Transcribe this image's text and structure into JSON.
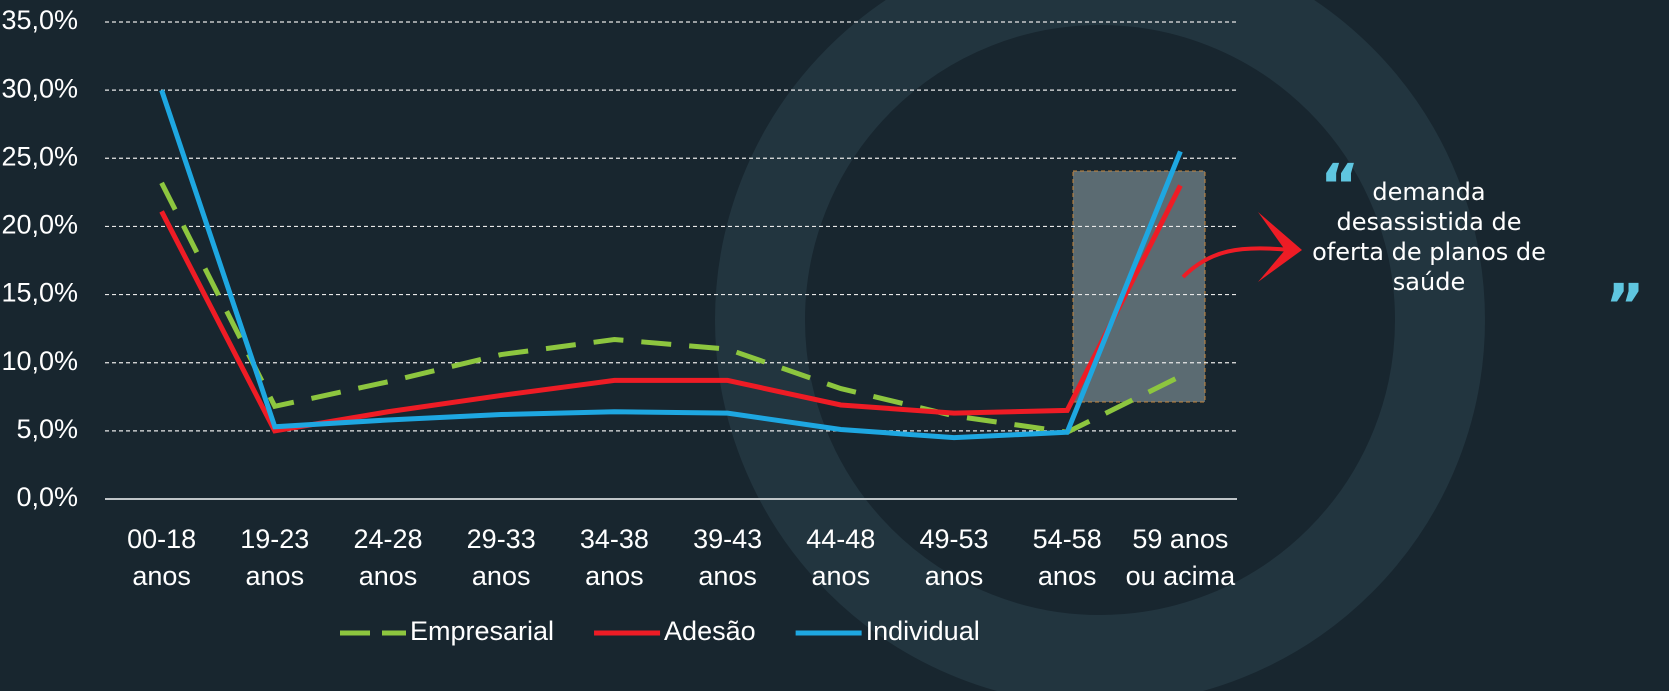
{
  "chart_data": {
    "type": "line",
    "categories": [
      [
        "00-18",
        "anos"
      ],
      [
        "19-23",
        "anos"
      ],
      [
        "24-28",
        "anos"
      ],
      [
        "29-33",
        "anos"
      ],
      [
        "34-38",
        "anos"
      ],
      [
        "39-43",
        "anos"
      ],
      [
        "44-48",
        "anos"
      ],
      [
        "49-53",
        "anos"
      ],
      [
        "54-58",
        "anos"
      ],
      [
        "59 anos",
        "ou acima"
      ]
    ],
    "series": [
      {
        "name": "Empresarial",
        "color": "#8dc63f",
        "dashed": true,
        "values": [
          23.2,
          6.8,
          8.6,
          10.6,
          11.7,
          11.0,
          8.1,
          6.1,
          4.9,
          9.0
        ]
      },
      {
        "name": "Adesão",
        "color": "#ee1c25",
        "dashed": false,
        "values": [
          21.1,
          5.0,
          6.4,
          7.6,
          8.7,
          8.7,
          6.9,
          6.3,
          6.5,
          23.0
        ]
      },
      {
        "name": "Individual",
        "color": "#1ea7e1",
        "dashed": false,
        "values": [
          30.0,
          5.3,
          5.8,
          6.2,
          6.4,
          6.3,
          5.1,
          4.5,
          4.9,
          25.5
        ]
      }
    ],
    "ylim": [
      0,
      35
    ],
    "yticks": [
      {
        "value": 0,
        "label": "0,0%"
      },
      {
        "value": 5,
        "label": "5,0%"
      },
      {
        "value": 10,
        "label": "10,0%"
      },
      {
        "value": 15,
        "label": "15,0%"
      },
      {
        "value": 20,
        "label": "20,0%"
      },
      {
        "value": 25,
        "label": "25,0%"
      },
      {
        "value": 30,
        "label": "30,0%"
      },
      {
        "value": 35,
        "label": "35,0%"
      }
    ],
    "grid": true,
    "legend": "bottom",
    "annotation": [
      "demanda",
      "desassistida de",
      "oferta de planos de",
      "saúde"
    ]
  }
}
